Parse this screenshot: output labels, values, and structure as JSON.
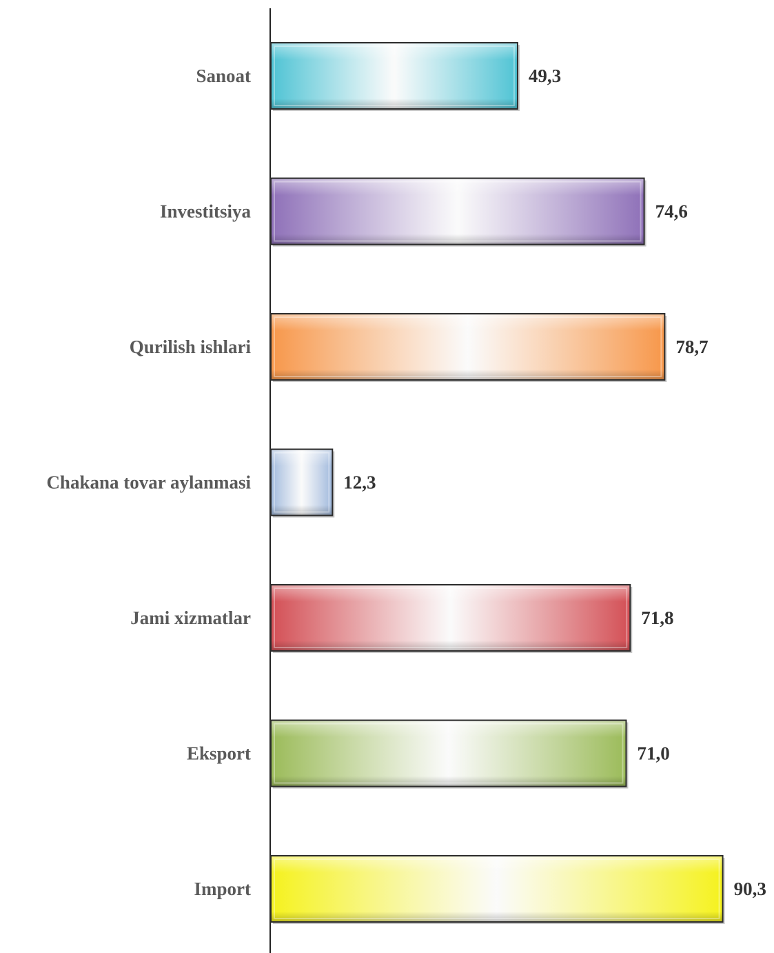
{
  "chart_data": {
    "type": "bar",
    "orientation": "horizontal",
    "categories": [
      "Sanoat",
      "Investitsiya",
      "Qurilish ishlari",
      "Chakana tovar aylanmasi",
      "Jami xizmatlar",
      "Eksport",
      "Import"
    ],
    "values": [
      49.3,
      74.6,
      78.7,
      12.3,
      71.8,
      71.0,
      90.3
    ],
    "value_labels": [
      "49,3",
      "74,6",
      "78,7",
      "12,3",
      "71,8",
      "71,0",
      "90,3"
    ],
    "colors": [
      "#4ec3d4",
      "#8e70b8",
      "#f7974a",
      "#9fb8dc",
      "#d34f55",
      "#9bbb59",
      "#f5f21e"
    ],
    "title": "",
    "xlabel": "",
    "ylabel": "",
    "xlim": [
      0,
      100
    ],
    "grid": false,
    "legend": "none"
  }
}
